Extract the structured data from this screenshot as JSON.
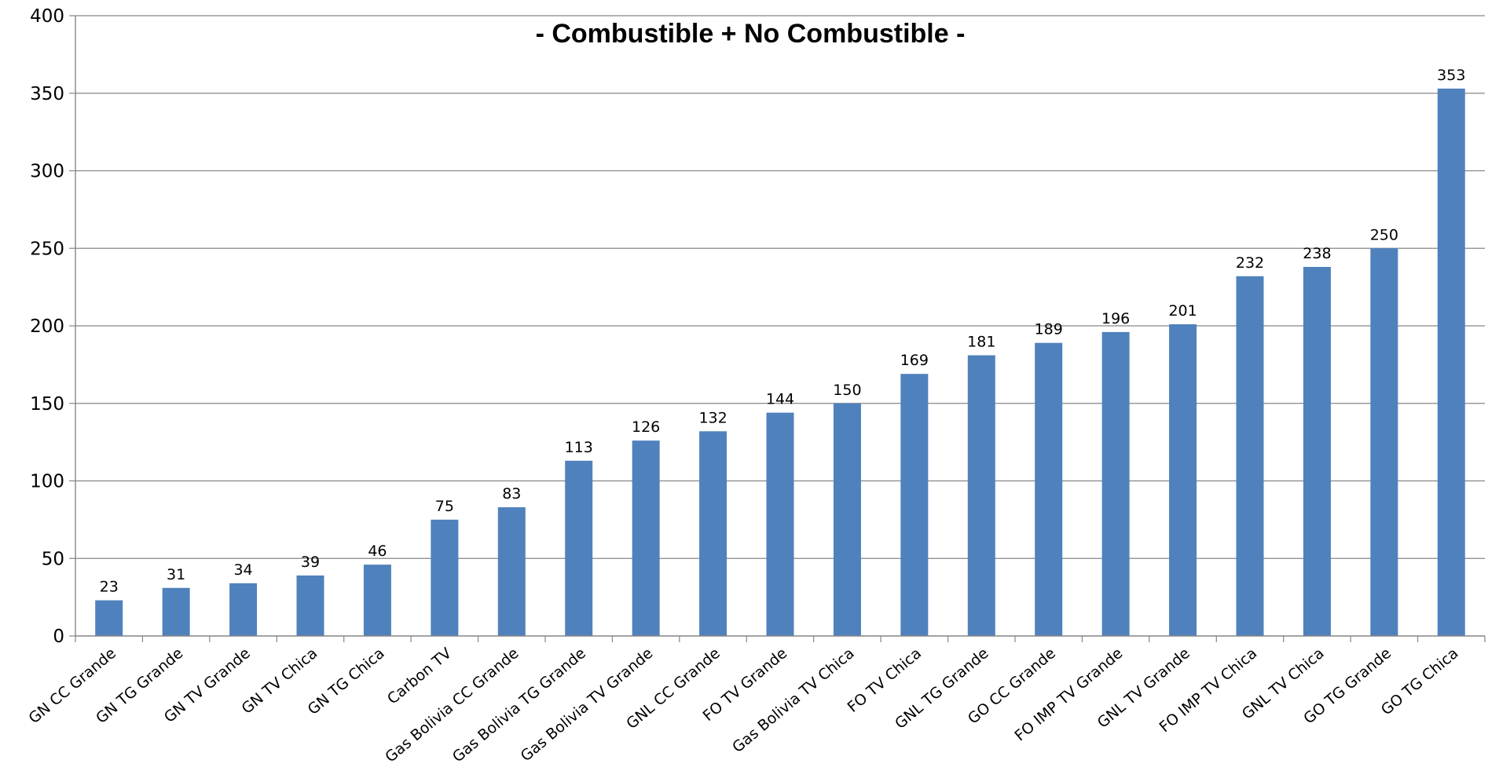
{
  "chart_data": {
    "type": "bar",
    "title": "- Combustible + No Combustible -",
    "xlabel": "",
    "ylabel": "",
    "ylim": [
      0,
      400
    ],
    "yticks": [
      0,
      50,
      100,
      150,
      200,
      250,
      300,
      350,
      400
    ],
    "grid": true,
    "legend": "none",
    "categories": [
      "GN CC Grande",
      "GN TG Grande",
      "GN TV Grande",
      "GN TV Chica",
      "GN TG Chica",
      "Carbon TV",
      "Gas Bolivia CC Grande",
      "Gas Bolivia TG Grande",
      "Gas Bolivia TV Grande",
      "GNL CC Grande",
      "FO TV Grande",
      "Gas Bolivia TV Chica",
      "FO TV Chica",
      "GNL TG Grande",
      "GO CC Grande",
      "FO IMP TV Grande",
      "GNL TV Grande",
      "FO IMP TV Chica",
      "GNL TV Chica",
      "GO TG Grande",
      "GO TG Chica"
    ],
    "values": [
      23,
      31,
      34,
      39,
      46,
      75,
      83,
      113,
      126,
      132,
      144,
      150,
      169,
      181,
      189,
      196,
      201,
      232,
      238,
      250,
      353
    ],
    "bar_color": "#4F81BD",
    "grid_color": "#868686"
  }
}
